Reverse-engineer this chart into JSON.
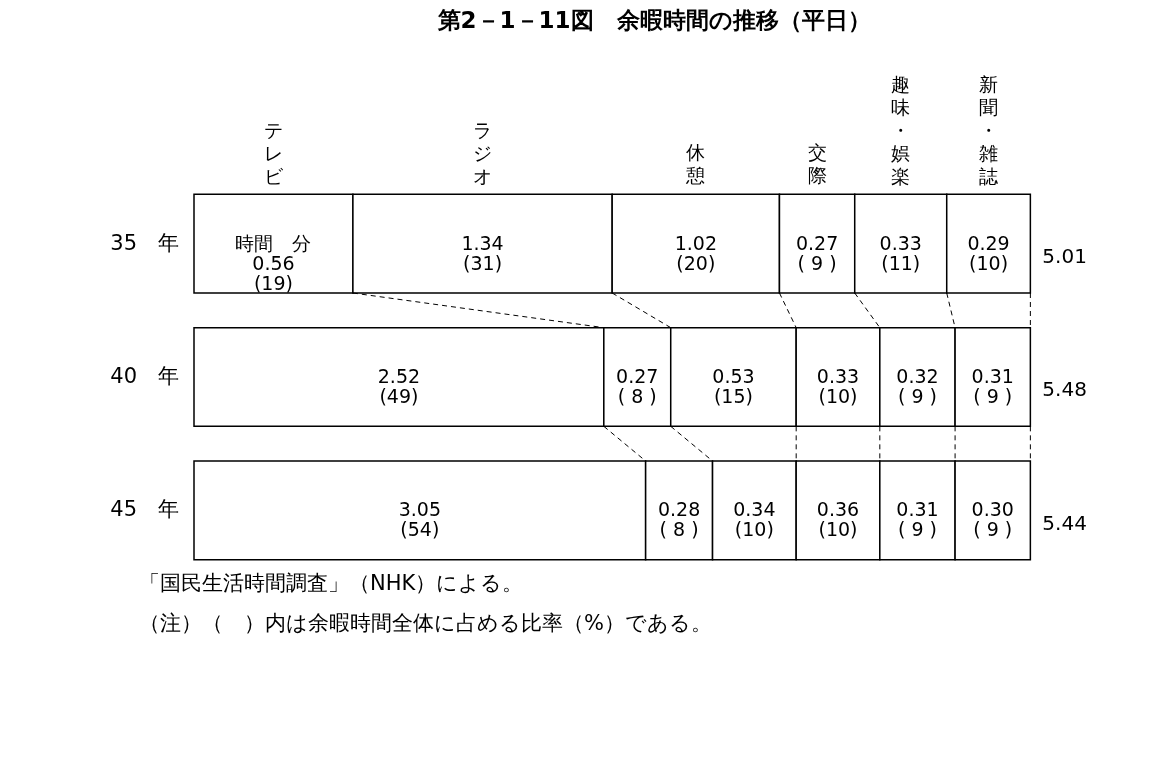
{
  "chart_data": {
    "type": "bar",
    "stacked": true,
    "orientation": "horizontal",
    "title": "第2－1－11図　余暇時間の推移（平日）",
    "categories": [
      "35　年",
      "40　年",
      "45　年"
    ],
    "series": [
      {
        "name": "テレビ",
        "color": "#ffffff",
        "values": [
          19,
          49,
          54
        ],
        "value_labels": [
          "時間　分\n0.56\n(19)",
          "2.52\n(49)",
          "3.05\n(54)"
        ]
      },
      {
        "name": "ラジオ",
        "color": "#ffffff",
        "values": [
          31,
          8,
          8
        ],
        "value_labels": [
          "1.34\n(31)",
          "0.27\n( 8 )",
          "0.28\n( 8 )"
        ]
      },
      {
        "name": "休憩",
        "color": "#ffffff",
        "values": [
          20,
          15,
          10
        ],
        "value_labels": [
          "1.02\n(20)",
          "0.53\n(15)",
          "0.34\n(10)"
        ]
      },
      {
        "name": "交際",
        "color": "#ffffff",
        "values": [
          9,
          10,
          10
        ],
        "value_labels": [
          "0.27\n( 9 )",
          "0.33\n(10)",
          "0.36\n(10)"
        ]
      },
      {
        "name": "趣味・娯楽",
        "color": "#ffffff",
        "values": [
          11,
          9,
          9
        ],
        "value_labels": [
          "0.33\n(11)",
          "0.32\n( 9 )",
          "0.31\n( 9 )"
        ]
      },
      {
        "name": "新聞・雑誌",
        "color": "#ffffff",
        "values": [
          10,
          9,
          9
        ],
        "value_labels": [
          "0.29\n(10)",
          "0.31\n( 9 )",
          "0.30\n( 9 )"
        ]
      }
    ],
    "annotations": [
      "5.01",
      "5.48",
      "5.44",
      "「国民生活時間調査」（NHK）による。",
      "（注）（　）内は余暇時間全体に占める比率（%）である。"
    ]
  }
}
